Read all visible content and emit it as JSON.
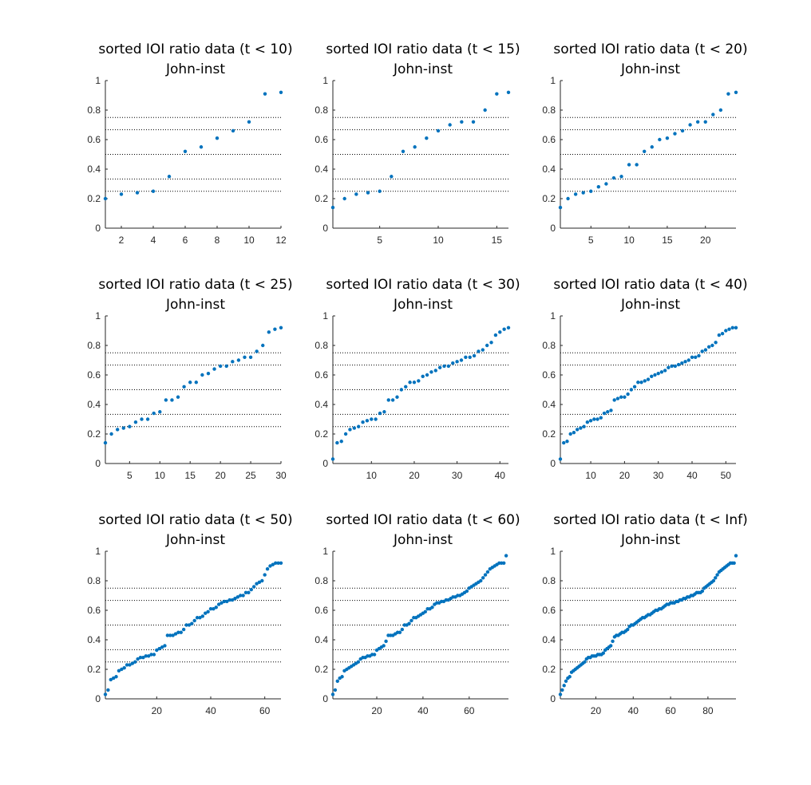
{
  "figure": {
    "background": "#ffffff",
    "marker_color": "#0072bd",
    "reference_line_color": "#000000",
    "reference_lines": [
      0.25,
      0.3333,
      0.5,
      0.6667,
      0.75
    ]
  },
  "chart_data": [
    {
      "type": "scatter",
      "title": "sorted IOI ratio data (t < 10)",
      "subtitle": "John-inst",
      "xlim": [
        1,
        12
      ],
      "ylim": [
        0,
        1
      ],
      "xticks": [
        2,
        4,
        6,
        8,
        10,
        12
      ],
      "yticks": [
        0,
        0.2,
        0.4,
        0.6,
        0.8,
        1
      ],
      "grid": false,
      "series": [
        {
          "y": [
            0.2,
            0.23,
            0.24,
            0.25,
            0.35,
            0.52,
            0.55,
            0.61,
            0.66,
            0.72,
            0.91,
            0.92
          ]
        }
      ]
    },
    {
      "type": "scatter",
      "title": "sorted IOI ratio data (t < 15)",
      "subtitle": "John-inst",
      "xlim": [
        1,
        16
      ],
      "ylim": [
        0,
        1
      ],
      "xticks": [
        5,
        10,
        15
      ],
      "yticks": [
        0,
        0.2,
        0.4,
        0.6,
        0.8,
        1
      ],
      "grid": false,
      "series": [
        {
          "y": [
            0.14,
            0.2,
            0.23,
            0.24,
            0.25,
            0.35,
            0.52,
            0.55,
            0.61,
            0.66,
            0.7,
            0.72,
            0.72,
            0.8,
            0.91,
            0.92
          ]
        }
      ]
    },
    {
      "type": "scatter",
      "title": "sorted IOI ratio data (t < 20)",
      "subtitle": "John-inst",
      "xlim": [
        1,
        24
      ],
      "ylim": [
        0,
        1
      ],
      "xticks": [
        5,
        10,
        15,
        20
      ],
      "yticks": [
        0,
        0.2,
        0.4,
        0.6,
        0.8,
        1
      ],
      "grid": false,
      "series": [
        {
          "y": [
            0.14,
            0.2,
            0.23,
            0.24,
            0.25,
            0.28,
            0.3,
            0.34,
            0.35,
            0.43,
            0.43,
            0.52,
            0.55,
            0.6,
            0.61,
            0.64,
            0.66,
            0.7,
            0.72,
            0.72,
            0.77,
            0.8,
            0.91,
            0.92
          ]
        }
      ]
    },
    {
      "type": "scatter",
      "title": "sorted IOI ratio data (t < 25)",
      "subtitle": "John-inst",
      "xlim": [
        1,
        30
      ],
      "ylim": [
        0,
        1
      ],
      "xticks": [
        5,
        10,
        15,
        20,
        25,
        30
      ],
      "yticks": [
        0,
        0.2,
        0.4,
        0.6,
        0.8,
        1
      ],
      "grid": false,
      "series": [
        {
          "y": [
            0.14,
            0.2,
            0.23,
            0.24,
            0.25,
            0.28,
            0.3,
            0.3,
            0.34,
            0.35,
            0.43,
            0.43,
            0.45,
            0.52,
            0.55,
            0.55,
            0.6,
            0.61,
            0.64,
            0.66,
            0.66,
            0.69,
            0.7,
            0.72,
            0.72,
            0.76,
            0.8,
            0.89,
            0.91,
            0.92
          ]
        }
      ]
    },
    {
      "type": "scatter",
      "title": "sorted IOI ratio data (t < 30)",
      "subtitle": "John-inst",
      "xlim": [
        1,
        42
      ],
      "ylim": [
        0,
        1
      ],
      "xticks": [
        10,
        20,
        30,
        40
      ],
      "yticks": [
        0,
        0.2,
        0.4,
        0.6,
        0.8,
        1
      ],
      "grid": false,
      "series": [
        {
          "y": [
            0.03,
            0.14,
            0.15,
            0.2,
            0.23,
            0.24,
            0.25,
            0.28,
            0.29,
            0.3,
            0.3,
            0.34,
            0.35,
            0.43,
            0.43,
            0.45,
            0.5,
            0.52,
            0.55,
            0.55,
            0.56,
            0.59,
            0.6,
            0.62,
            0.63,
            0.65,
            0.66,
            0.66,
            0.68,
            0.69,
            0.7,
            0.72,
            0.72,
            0.73,
            0.76,
            0.77,
            0.8,
            0.82,
            0.87,
            0.89,
            0.91,
            0.92
          ]
        }
      ]
    },
    {
      "type": "scatter",
      "title": "sorted IOI ratio data (t < 40)",
      "subtitle": "John-inst",
      "xlim": [
        1,
        53
      ],
      "ylim": [
        0,
        1
      ],
      "xticks": [
        10,
        20,
        30,
        40,
        50
      ],
      "yticks": [
        0,
        0.2,
        0.4,
        0.6,
        0.8,
        1
      ],
      "grid": false,
      "series": [
        {
          "y": [
            0.03,
            0.14,
            0.15,
            0.2,
            0.21,
            0.23,
            0.24,
            0.25,
            0.28,
            0.29,
            0.3,
            0.3,
            0.31,
            0.34,
            0.35,
            0.36,
            0.43,
            0.44,
            0.45,
            0.45,
            0.47,
            0.5,
            0.52,
            0.55,
            0.55,
            0.56,
            0.57,
            0.59,
            0.6,
            0.61,
            0.62,
            0.63,
            0.65,
            0.66,
            0.66,
            0.67,
            0.68,
            0.69,
            0.7,
            0.72,
            0.72,
            0.73,
            0.76,
            0.77,
            0.79,
            0.8,
            0.82,
            0.87,
            0.88,
            0.9,
            0.91,
            0.92,
            0.92
          ]
        }
      ]
    },
    {
      "type": "scatter",
      "title": "sorted IOI ratio data (t < 50)",
      "subtitle": "John-inst",
      "xlim": [
        1,
        66
      ],
      "ylim": [
        0,
        1
      ],
      "xticks": [
        20,
        40,
        60
      ],
      "yticks": [
        0,
        0.2,
        0.4,
        0.6,
        0.8,
        1
      ],
      "grid": false,
      "series": [
        {
          "y": [
            0.03,
            0.06,
            0.13,
            0.14,
            0.15,
            0.19,
            0.2,
            0.21,
            0.23,
            0.23,
            0.24,
            0.25,
            0.27,
            0.28,
            0.28,
            0.29,
            0.29,
            0.3,
            0.3,
            0.33,
            0.34,
            0.35,
            0.36,
            0.43,
            0.43,
            0.43,
            0.44,
            0.45,
            0.45,
            0.47,
            0.5,
            0.5,
            0.51,
            0.53,
            0.55,
            0.55,
            0.56,
            0.58,
            0.59,
            0.61,
            0.61,
            0.62,
            0.64,
            0.65,
            0.66,
            0.66,
            0.67,
            0.67,
            0.68,
            0.69,
            0.7,
            0.7,
            0.72,
            0.72,
            0.74,
            0.76,
            0.78,
            0.79,
            0.8,
            0.84,
            0.88,
            0.9,
            0.91,
            0.92,
            0.92,
            0.92
          ]
        }
      ]
    },
    {
      "type": "scatter",
      "title": "sorted IOI ratio data (t < 60)",
      "subtitle": "John-inst",
      "xlim": [
        1,
        77
      ],
      "ylim": [
        0,
        1
      ],
      "xticks": [
        20,
        40,
        60
      ],
      "yticks": [
        0,
        0.2,
        0.4,
        0.6,
        0.8,
        1
      ],
      "grid": false,
      "series": [
        {
          "y": [
            0.03,
            0.06,
            0.12,
            0.14,
            0.15,
            0.19,
            0.2,
            0.21,
            0.22,
            0.23,
            0.24,
            0.25,
            0.27,
            0.28,
            0.28,
            0.29,
            0.29,
            0.3,
            0.3,
            0.33,
            0.34,
            0.35,
            0.36,
            0.39,
            0.43,
            0.43,
            0.43,
            0.44,
            0.45,
            0.45,
            0.47,
            0.5,
            0.5,
            0.51,
            0.53,
            0.55,
            0.55,
            0.56,
            0.57,
            0.58,
            0.59,
            0.61,
            0.61,
            0.62,
            0.64,
            0.65,
            0.65,
            0.66,
            0.66,
            0.67,
            0.67,
            0.68,
            0.69,
            0.69,
            0.7,
            0.7,
            0.71,
            0.72,
            0.73,
            0.75,
            0.76,
            0.77,
            0.78,
            0.79,
            0.8,
            0.82,
            0.84,
            0.86,
            0.88,
            0.89,
            0.9,
            0.91,
            0.92,
            0.92,
            0.92,
            0.97
          ]
        }
      ]
    },
    {
      "type": "scatter",
      "title": "sorted IOI ratio data (t < Inf)",
      "subtitle": "John-inst",
      "xlim": [
        1,
        95
      ],
      "ylim": [
        0,
        1
      ],
      "xticks": [
        20,
        40,
        60,
        80
      ],
      "yticks": [
        0,
        0.2,
        0.4,
        0.6,
        0.8,
        1
      ],
      "grid": false,
      "series": [
        {
          "y": [
            0.03,
            0.06,
            0.09,
            0.12,
            0.14,
            0.15,
            0.18,
            0.19,
            0.2,
            0.21,
            0.22,
            0.23,
            0.24,
            0.25,
            0.27,
            0.28,
            0.28,
            0.29,
            0.29,
            0.29,
            0.3,
            0.3,
            0.3,
            0.31,
            0.33,
            0.34,
            0.35,
            0.36,
            0.39,
            0.42,
            0.43,
            0.43,
            0.44,
            0.45,
            0.45,
            0.46,
            0.47,
            0.49,
            0.5,
            0.5,
            0.51,
            0.52,
            0.53,
            0.54,
            0.55,
            0.55,
            0.56,
            0.57,
            0.57,
            0.58,
            0.59,
            0.6,
            0.6,
            0.61,
            0.61,
            0.62,
            0.63,
            0.64,
            0.64,
            0.65,
            0.65,
            0.65,
            0.66,
            0.66,
            0.67,
            0.67,
            0.68,
            0.68,
            0.69,
            0.69,
            0.7,
            0.7,
            0.71,
            0.72,
            0.72,
            0.72,
            0.73,
            0.75,
            0.76,
            0.77,
            0.78,
            0.79,
            0.8,
            0.82,
            0.84,
            0.86,
            0.87,
            0.88,
            0.89,
            0.9,
            0.91,
            0.92,
            0.92,
            0.92,
            0.97
          ]
        }
      ]
    }
  ]
}
